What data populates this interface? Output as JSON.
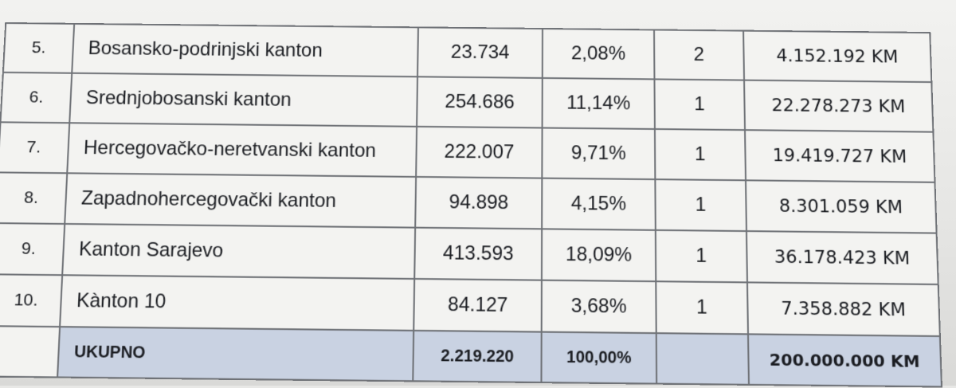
{
  "table": {
    "rows": [
      {
        "index": "5.",
        "name": "Bosansko-podrinjski kanton",
        "population": "23.734",
        "percent": "2,08%",
        "seats": "2",
        "amount": "4.152.192 KM"
      },
      {
        "index": "6.",
        "name": "Srednjobosanski kanton",
        "population": "254.686",
        "percent": "11,14%",
        "seats": "1",
        "amount": "22.278.273 KM"
      },
      {
        "index": "7.",
        "name": "Hercegovačko-neretvanski kanton",
        "population": "222.007",
        "percent": "9,71%",
        "seats": "1",
        "amount": "19.419.727 KM"
      },
      {
        "index": "8.",
        "name": "Zapadnohercegovački kanton",
        "population": "94.898",
        "percent": "4,15%",
        "seats": "1",
        "amount": "8.301.059 KM"
      },
      {
        "index": "9.",
        "name": "Kanton Sarajevo",
        "population": "413.593",
        "percent": "18,09%",
        "seats": "1",
        "amount": "36.178.423 KM"
      },
      {
        "index": "10.",
        "name": "Kànton 10",
        "population": "84.127",
        "percent": "3,68%",
        "seats": "1",
        "amount": "7.358.882 KM"
      }
    ],
    "total": {
      "index": "",
      "name": "UKUPNO",
      "population": "2.219.220",
      "percent": "100,00%",
      "seats": "",
      "amount": "200.000.000 KM"
    }
  },
  "colors": {
    "total_row_bg": "#c9d2e2",
    "border": "#6f7277"
  }
}
